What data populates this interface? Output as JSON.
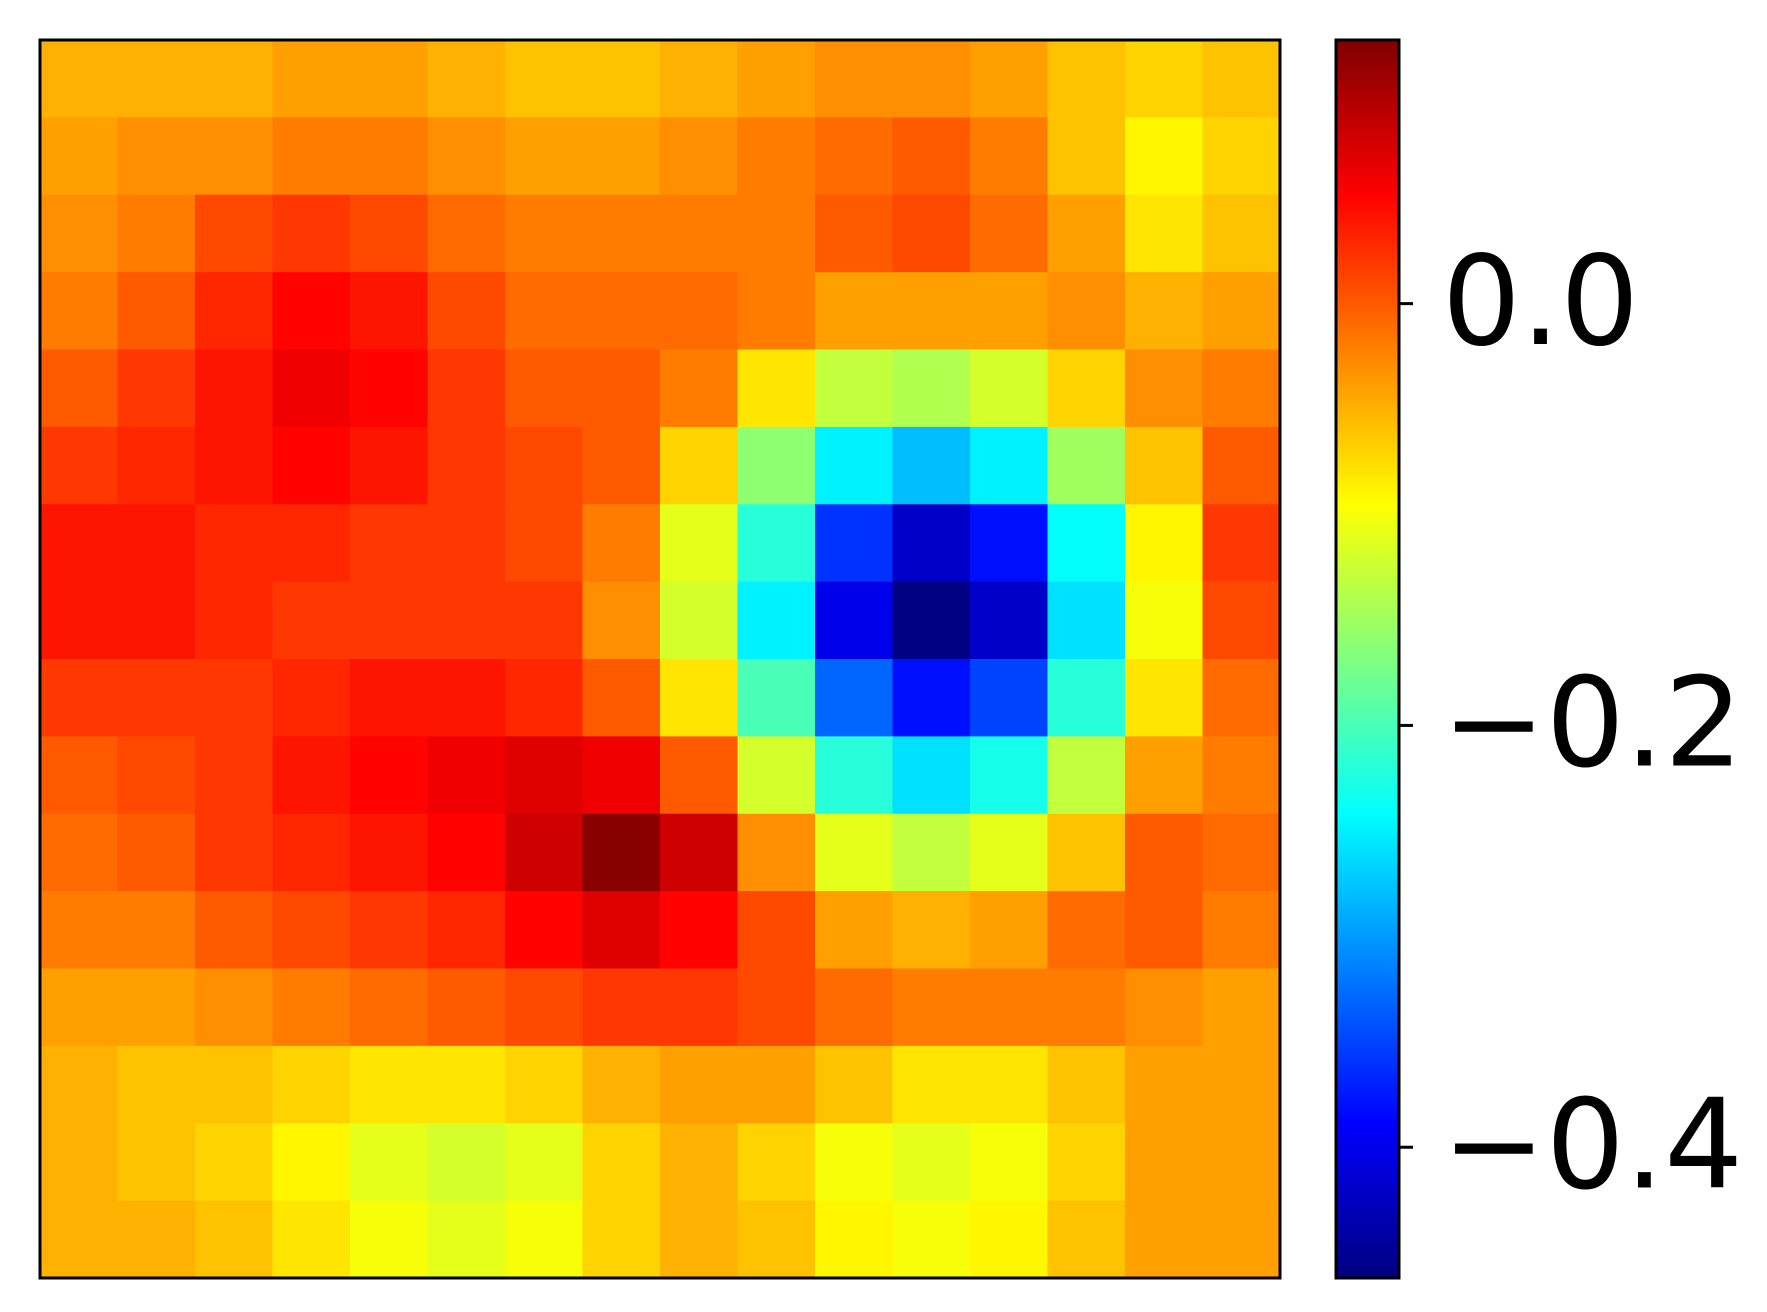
{
  "chart_data": {
    "type": "heatmap",
    "colormap": "jet",
    "z": [
      [
        -0.05,
        -0.05,
        -0.05,
        -0.04,
        -0.04,
        -0.05,
        -0.06,
        -0.06,
        -0.05,
        -0.04,
        -0.03,
        -0.03,
        -0.04,
        -0.06,
        -0.07,
        -0.06
      ],
      [
        -0.04,
        -0.03,
        -0.03,
        -0.02,
        -0.02,
        -0.03,
        -0.04,
        -0.04,
        -0.03,
        -0.02,
        -0.01,
        0.0,
        -0.02,
        -0.06,
        -0.09,
        -0.07
      ],
      [
        -0.03,
        -0.02,
        0.01,
        0.02,
        0.01,
        -0.01,
        -0.02,
        -0.02,
        -0.02,
        -0.02,
        0.0,
        0.01,
        -0.01,
        -0.04,
        -0.08,
        -0.06
      ],
      [
        -0.02,
        0.0,
        0.03,
        0.05,
        0.04,
        0.01,
        -0.01,
        -0.01,
        -0.01,
        -0.02,
        -0.04,
        -0.04,
        -0.04,
        -0.03,
        -0.05,
        -0.04
      ],
      [
        0.0,
        0.02,
        0.04,
        0.06,
        0.05,
        0.02,
        0.0,
        0.0,
        -0.02,
        -0.08,
        -0.13,
        -0.14,
        -0.12,
        -0.07,
        -0.03,
        -0.02
      ],
      [
        0.02,
        0.03,
        0.04,
        0.05,
        0.04,
        0.02,
        0.01,
        0.0,
        -0.07,
        -0.16,
        -0.25,
        -0.28,
        -0.25,
        -0.15,
        -0.06,
        0.0
      ],
      [
        0.04,
        0.04,
        0.03,
        0.03,
        0.02,
        0.02,
        0.01,
        -0.02,
        -0.11,
        -0.22,
        -0.36,
        -0.42,
        -0.38,
        -0.24,
        -0.09,
        0.02
      ],
      [
        0.04,
        0.04,
        0.03,
        0.02,
        0.02,
        0.02,
        0.02,
        -0.03,
        -0.12,
        -0.25,
        -0.4,
        -0.46,
        -0.42,
        -0.26,
        -0.1,
        0.01
      ],
      [
        0.02,
        0.02,
        0.02,
        0.03,
        0.04,
        0.04,
        0.03,
        0.0,
        -0.08,
        -0.2,
        -0.33,
        -0.38,
        -0.35,
        -0.22,
        -0.08,
        -0.01
      ],
      [
        0.0,
        0.01,
        0.02,
        0.04,
        0.05,
        0.06,
        0.07,
        0.06,
        0.0,
        -0.12,
        -0.22,
        -0.26,
        -0.23,
        -0.13,
        -0.04,
        -0.02
      ],
      [
        -0.01,
        0.0,
        0.02,
        0.03,
        0.04,
        0.05,
        0.08,
        0.12,
        0.08,
        -0.03,
        -0.11,
        -0.13,
        -0.11,
        -0.06,
        0.0,
        -0.01
      ],
      [
        -0.02,
        -0.02,
        0.0,
        0.01,
        0.02,
        0.03,
        0.05,
        0.07,
        0.05,
        0.01,
        -0.04,
        -0.05,
        -0.04,
        -0.01,
        0.0,
        -0.02
      ],
      [
        -0.04,
        -0.04,
        -0.03,
        -0.02,
        -0.01,
        0.0,
        0.01,
        0.02,
        0.02,
        0.01,
        -0.01,
        -0.02,
        -0.02,
        -0.02,
        -0.03,
        -0.04
      ],
      [
        -0.05,
        -0.06,
        -0.06,
        -0.07,
        -0.08,
        -0.08,
        -0.07,
        -0.05,
        -0.04,
        -0.04,
        -0.06,
        -0.08,
        -0.08,
        -0.06,
        -0.04,
        -0.04
      ],
      [
        -0.05,
        -0.06,
        -0.07,
        -0.09,
        -0.11,
        -0.12,
        -0.11,
        -0.07,
        -0.05,
        -0.07,
        -0.1,
        -0.11,
        -0.1,
        -0.07,
        -0.04,
        -0.04
      ],
      [
        -0.05,
        -0.05,
        -0.06,
        -0.08,
        -0.1,
        -0.11,
        -0.1,
        -0.07,
        -0.05,
        -0.06,
        -0.09,
        -0.1,
        -0.09,
        -0.06,
        -0.04,
        -0.04
      ]
    ],
    "zlim": [
      -0.462,
      0.125
    ],
    "zticks": [
      {
        "value": 0.0,
        "label": "0.0"
      },
      {
        "value": -0.2,
        "label": "−0.2"
      },
      {
        "value": -0.4,
        "label": "−0.4"
      }
    ]
  }
}
